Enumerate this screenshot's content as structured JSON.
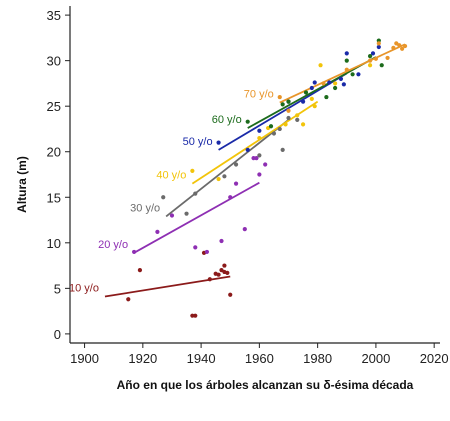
{
  "chart_data": {
    "type": "scatter",
    "title": "",
    "xlabel": "Año en que  los árboles alcanzan su δ-ésima década",
    "ylabel": "Altura (m)",
    "xlim": [
      1895,
      2022
    ],
    "ylim": [
      -1,
      36
    ],
    "x_ticks": [
      1900,
      1920,
      1940,
      1960,
      1980,
      2000,
      2020
    ],
    "y_ticks": [
      0,
      5,
      10,
      15,
      20,
      25,
      30,
      35
    ],
    "grid": false,
    "series": [
      {
        "name": "10 y/o",
        "color": "#8b1a1a",
        "points": [
          [
            1915,
            3.8
          ],
          [
            1919,
            7.0
          ],
          [
            1937,
            2.0
          ],
          [
            1938,
            2.0
          ],
          [
            1941,
            8.9
          ],
          [
            1943,
            6.0
          ],
          [
            1945,
            6.6
          ],
          [
            1946,
            6.5
          ],
          [
            1947,
            7.0
          ],
          [
            1948,
            7.5
          ],
          [
            1948,
            6.8
          ],
          [
            1949,
            6.7
          ],
          [
            1950,
            4.3
          ]
        ],
        "trend": [
          [
            1907,
            4.1
          ],
          [
            1950,
            6.3
          ]
        ]
      },
      {
        "name": "20 y/o",
        "color": "#8e2fb3",
        "points": [
          [
            1917,
            9.0
          ],
          [
            1925,
            11.2
          ],
          [
            1930,
            13.0
          ],
          [
            1938,
            9.5
          ],
          [
            1942,
            9.0
          ],
          [
            1947,
            10.2
          ],
          [
            1950,
            15.0
          ],
          [
            1952,
            16.5
          ],
          [
            1955,
            11.5
          ],
          [
            1958,
            19.3
          ],
          [
            1959,
            19.3
          ],
          [
            1960,
            17.5
          ],
          [
            1962,
            18.6
          ]
        ],
        "trend": [
          [
            1917,
            8.9
          ],
          [
            1960,
            16.6
          ]
        ]
      },
      {
        "name": "30 y/o",
        "color": "#6b6b6b",
        "points": [
          [
            1927,
            15.0
          ],
          [
            1935,
            13.2
          ],
          [
            1938,
            15.4
          ],
          [
            1948,
            17.3
          ],
          [
            1952,
            18.6
          ],
          [
            1960,
            19.6
          ],
          [
            1965,
            22.0
          ],
          [
            1967,
            22.5
          ],
          [
            1968,
            20.2
          ],
          [
            1970,
            23.7
          ],
          [
            1973,
            23.5
          ]
        ],
        "trend": [
          [
            1928,
            12.9
          ],
          [
            1970,
            23.5
          ]
        ]
      },
      {
        "name": "40 y/o",
        "color": "#f2c40a",
        "points": [
          [
            1937,
            17.9
          ],
          [
            1946,
            17.0
          ],
          [
            1960,
            21.5
          ],
          [
            1963,
            22.6
          ],
          [
            1969,
            23.0
          ],
          [
            1973,
            24.0
          ],
          [
            1975,
            23.0
          ],
          [
            1978,
            25.8
          ],
          [
            1979,
            25.0
          ],
          [
            1981,
            29.5
          ],
          [
            1986,
            27.5
          ],
          [
            1998,
            29.5
          ]
        ],
        "trend": [
          [
            1937,
            16.5
          ],
          [
            1980,
            25.5
          ]
        ]
      },
      {
        "name": "50 y/o",
        "color": "#1a2aa8",
        "points": [
          [
            1946,
            21.0
          ],
          [
            1956,
            20.2
          ],
          [
            1960,
            22.3
          ],
          [
            1970,
            25.5
          ],
          [
            1975,
            25.5
          ],
          [
            1978,
            27.0
          ],
          [
            1979,
            27.6
          ],
          [
            1984,
            27.6
          ],
          [
            1988,
            28.0
          ],
          [
            1989,
            27.4
          ],
          [
            1990,
            30.8
          ],
          [
            1994,
            28.5
          ],
          [
            1999,
            30.8
          ],
          [
            2001,
            31.5
          ]
        ],
        "trend": [
          [
            1946,
            20.2
          ],
          [
            1990,
            28.6
          ]
        ]
      },
      {
        "name": "60 y/o",
        "color": "#1c6b1c",
        "points": [
          [
            1956,
            23.3
          ],
          [
            1964,
            22.8
          ],
          [
            1968,
            25.2
          ],
          [
            1970,
            25.5
          ],
          [
            1976,
            26.5
          ],
          [
            1983,
            26.0
          ],
          [
            1986,
            27.0
          ],
          [
            1990,
            30.0
          ],
          [
            1992,
            28.5
          ],
          [
            1998,
            30.5
          ],
          [
            2001,
            32.2
          ],
          [
            2002,
            29.5
          ]
        ],
        "trend": [
          [
            1956,
            22.6
          ],
          [
            2000,
            30.4
          ]
        ]
      },
      {
        "name": "70 y/o",
        "color": "#e8952a",
        "points": [
          [
            1967,
            26.0
          ],
          [
            1970,
            24.5
          ],
          [
            1982,
            27.5
          ],
          [
            1990,
            29.0
          ],
          [
            1998,
            30.0
          ],
          [
            2000,
            30.2
          ],
          [
            2001,
            31.9
          ],
          [
            2004,
            30.3
          ],
          [
            2006,
            31.4
          ],
          [
            2007,
            31.9
          ],
          [
            2008,
            31.7
          ],
          [
            2009,
            31.3
          ],
          [
            2010,
            31.6
          ]
        ],
        "trend": [
          [
            1967,
            25.4
          ],
          [
            2010,
            31.8
          ]
        ]
      }
    ]
  }
}
